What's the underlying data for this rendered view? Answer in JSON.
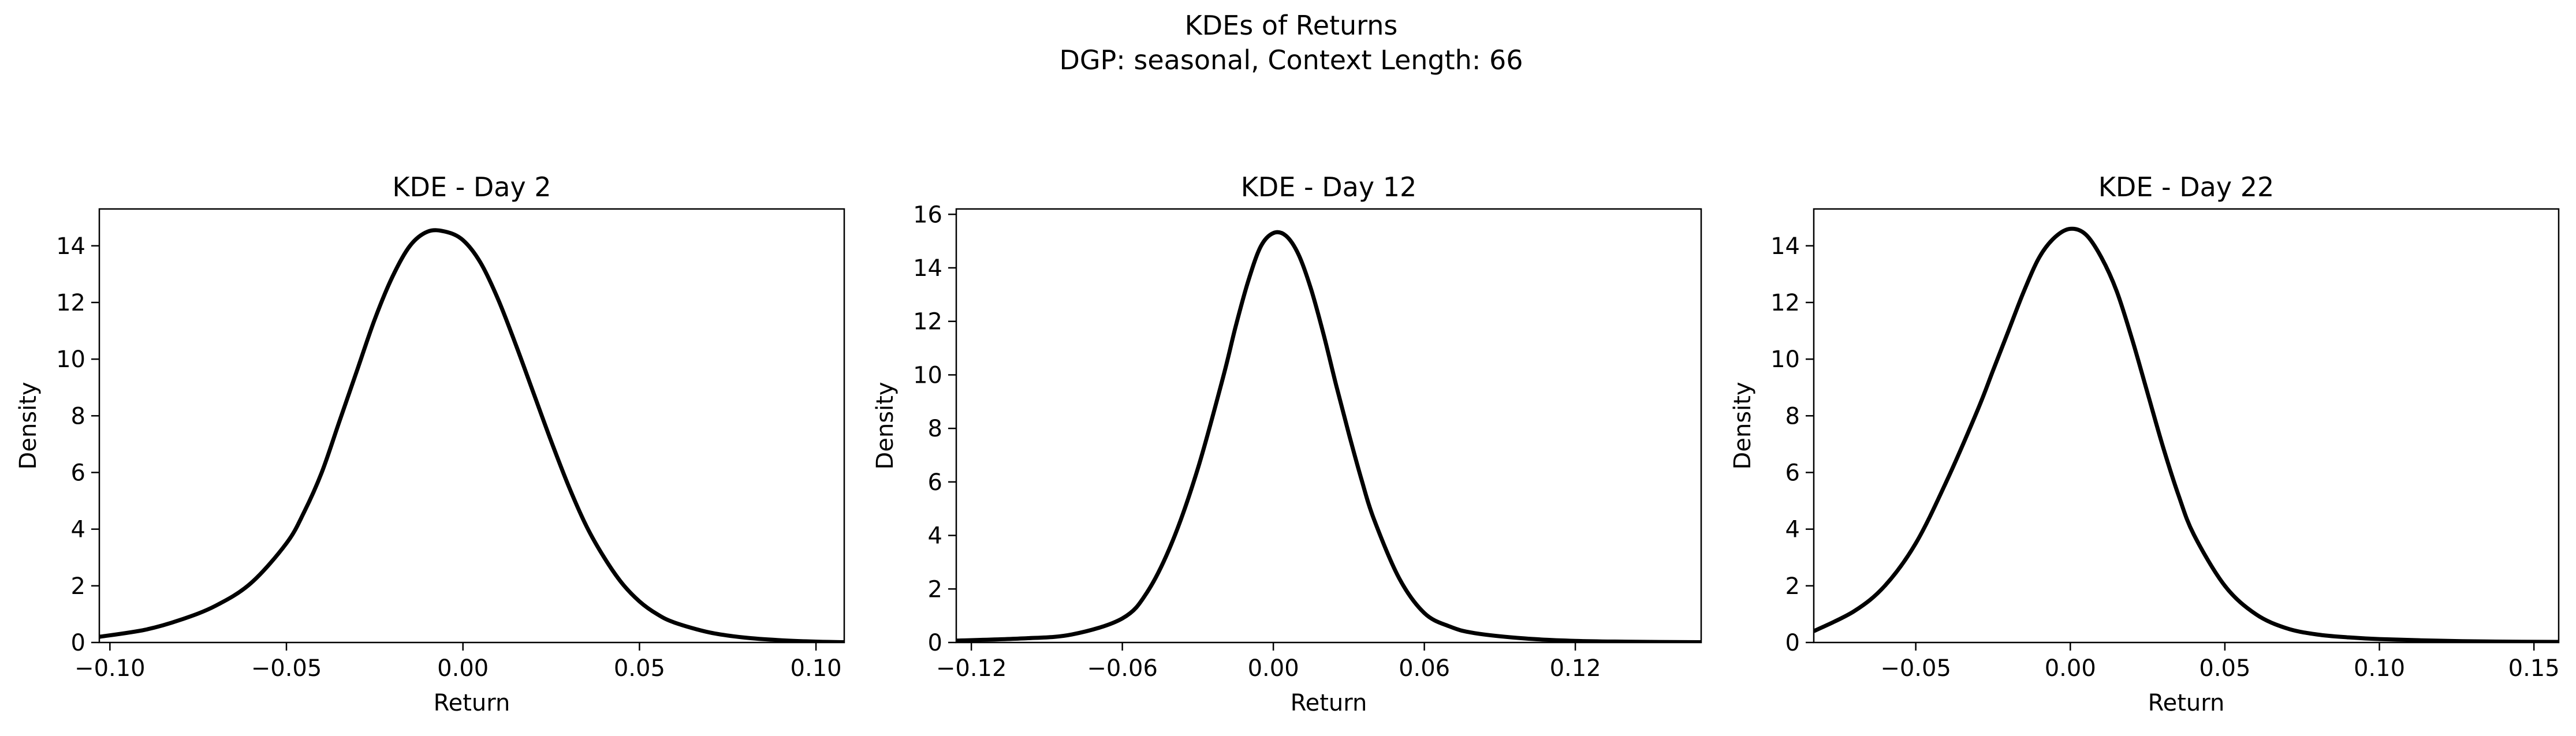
{
  "figure": {
    "suptitle_line1": "KDEs of Returns",
    "suptitle_line2": "DGP: seasonal, Context Length: 66"
  },
  "chart_data": [
    {
      "type": "line",
      "title": "KDE - Day 2",
      "xlabel": "Return",
      "ylabel": "Density",
      "xlim": [
        -0.103,
        0.108
      ],
      "ylim": [
        0,
        15.3
      ],
      "xticks": [
        -0.1,
        -0.05,
        0.0,
        0.05,
        0.1
      ],
      "xtick_labels": [
        "−0.10",
        "−0.05",
        "0.00",
        "0.05",
        "0.10"
      ],
      "yticks": [
        0,
        2,
        4,
        6,
        8,
        10,
        12,
        14
      ],
      "yticks_labels": [
        "0",
        "2",
        "4",
        "6",
        "8",
        "10",
        "12",
        "14"
      ],
      "line_color": "#000000",
      "series": [
        {
          "x": [
            -0.103,
            -0.09,
            -0.08,
            -0.07,
            -0.06,
            -0.05,
            -0.045,
            -0.04,
            -0.035,
            -0.03,
            -0.025,
            -0.02,
            -0.015,
            -0.01,
            -0.005,
            0.0,
            0.005,
            0.01,
            0.015,
            0.02,
            0.025,
            0.03,
            0.035,
            0.04,
            0.045,
            0.05,
            0.055,
            0.06,
            0.07,
            0.08,
            0.09,
            0.1,
            0.108
          ],
          "y": [
            0.2,
            0.45,
            0.8,
            1.3,
            2.1,
            3.5,
            4.6,
            6.0,
            7.8,
            9.6,
            11.4,
            12.9,
            14.0,
            14.5,
            14.5,
            14.2,
            13.4,
            12.1,
            10.5,
            8.8,
            7.1,
            5.5,
            4.1,
            3.0,
            2.1,
            1.45,
            1.0,
            0.7,
            0.35,
            0.17,
            0.08,
            0.03,
            0.01
          ]
        }
      ]
    },
    {
      "type": "line",
      "title": "KDE - Day 12",
      "xlabel": "Return",
      "ylabel": "Density",
      "xlim": [
        -0.126,
        0.17
      ],
      "ylim": [
        0,
        16.2
      ],
      "xticks": [
        -0.12,
        -0.06,
        0.0,
        0.06,
        0.12
      ],
      "xtick_labels": [
        "−0.12",
        "−0.06",
        "0.00",
        "0.06",
        "0.12"
      ],
      "yticks": [
        0,
        2,
        4,
        6,
        8,
        10,
        12,
        14,
        16
      ],
      "yticks_labels": [
        "0",
        "2",
        "4",
        "6",
        "8",
        "10",
        "12",
        "14",
        "16"
      ],
      "line_color": "#000000",
      "series": [
        {
          "x": [
            -0.126,
            -0.1,
            -0.08,
            -0.06,
            -0.05,
            -0.04,
            -0.03,
            -0.02,
            -0.015,
            -0.01,
            -0.005,
            0.0,
            0.005,
            0.01,
            0.015,
            0.02,
            0.025,
            0.03,
            0.035,
            0.04,
            0.05,
            0.06,
            0.07,
            0.08,
            0.1,
            0.12,
            0.14,
            0.17
          ],
          "y": [
            0.07,
            0.15,
            0.3,
            0.9,
            1.9,
            3.8,
            6.5,
            9.9,
            11.8,
            13.5,
            14.8,
            15.3,
            15.2,
            14.5,
            13.2,
            11.5,
            9.6,
            7.8,
            6.1,
            4.6,
            2.4,
            1.1,
            0.6,
            0.35,
            0.15,
            0.06,
            0.03,
            0.01
          ]
        }
      ]
    },
    {
      "type": "line",
      "title": "KDE - Day 22",
      "xlabel": "Return",
      "ylabel": "Density",
      "xlim": [
        -0.083,
        0.158
      ],
      "ylim": [
        0,
        15.3
      ],
      "xticks": [
        -0.05,
        0.0,
        0.05,
        0.1,
        0.15
      ],
      "xtick_labels": [
        "−0.05",
        "0.00",
        "0.05",
        "0.10",
        "0.15"
      ],
      "yticks": [
        0,
        2,
        4,
        6,
        8,
        10,
        12,
        14
      ],
      "yticks_labels": [
        "0",
        "2",
        "4",
        "6",
        "8",
        "10",
        "12",
        "14"
      ],
      "line_color": "#000000",
      "series": [
        {
          "x": [
            -0.083,
            -0.07,
            -0.06,
            -0.05,
            -0.04,
            -0.03,
            -0.025,
            -0.02,
            -0.015,
            -0.01,
            -0.005,
            0.0,
            0.005,
            0.01,
            0.015,
            0.02,
            0.025,
            0.03,
            0.035,
            0.04,
            0.05,
            0.06,
            0.07,
            0.08,
            0.09,
            0.1,
            0.12,
            0.14,
            0.158
          ],
          "y": [
            0.4,
            1.1,
            2.0,
            3.5,
            5.7,
            8.2,
            9.6,
            11.0,
            12.4,
            13.6,
            14.3,
            14.6,
            14.4,
            13.6,
            12.4,
            10.7,
            8.8,
            6.9,
            5.2,
            3.8,
            2.0,
            1.0,
            0.5,
            0.28,
            0.18,
            0.12,
            0.06,
            0.03,
            0.02
          ]
        }
      ]
    }
  ]
}
